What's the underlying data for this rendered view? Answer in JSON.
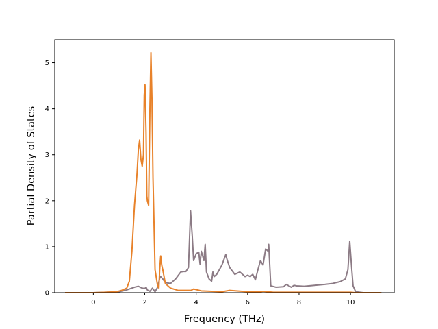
{
  "chart_data": {
    "type": "line",
    "title": "",
    "xlabel": "Frequency (THz)",
    "ylabel": "Partial Density of States",
    "xlim": [
      -1.5,
      11.7
    ],
    "ylim": [
      0,
      5.5
    ],
    "xticks": [
      0,
      2,
      4,
      6,
      8,
      10
    ],
    "yticks": [
      0,
      1,
      2,
      3,
      4,
      5
    ],
    "xtick_labels": [
      "0",
      "2",
      "4",
      "6",
      "8",
      "10"
    ],
    "ytick_labels": [
      "0",
      "1",
      "2",
      "3",
      "4",
      "5"
    ],
    "grid": false,
    "legend": false,
    "series": [
      {
        "color": "#8c7b85",
        "x": [
          -1.1,
          0.0,
          0.5,
          1.0,
          1.3,
          1.6,
          1.75,
          1.9,
          2.0,
          2.05,
          2.1,
          2.2,
          2.3,
          2.4,
          2.5,
          2.6,
          2.7,
          2.8,
          3.0,
          3.2,
          3.4,
          3.5,
          3.6,
          3.7,
          3.78,
          3.85,
          3.9,
          4.0,
          4.1,
          4.15,
          4.2,
          4.3,
          4.35,
          4.4,
          4.5,
          4.6,
          4.65,
          4.7,
          4.8,
          5.0,
          5.15,
          5.2,
          5.3,
          5.5,
          5.7,
          5.9,
          6.0,
          6.1,
          6.2,
          6.3,
          6.4,
          6.5,
          6.6,
          6.7,
          6.8,
          6.82,
          6.9,
          7.1,
          7.4,
          7.5,
          7.7,
          7.8,
          7.9,
          8.2,
          8.6,
          9.0,
          9.3,
          9.6,
          9.8,
          9.9,
          9.97,
          10.05,
          10.1,
          10.2,
          10.5,
          11.2
        ],
        "y": [
          0,
          0,
          0.01,
          0.02,
          0.06,
          0.12,
          0.14,
          0.1,
          0.09,
          0.12,
          0.06,
          0.03,
          0.1,
          0.02,
          0.12,
          0.36,
          0.3,
          0.22,
          0.2,
          0.3,
          0.45,
          0.46,
          0.46,
          0.55,
          1.78,
          1.2,
          0.7,
          0.85,
          0.88,
          0.62,
          0.9,
          0.7,
          1.05,
          0.45,
          0.3,
          0.25,
          0.45,
          0.35,
          0.4,
          0.6,
          0.83,
          0.72,
          0.55,
          0.4,
          0.45,
          0.35,
          0.38,
          0.35,
          0.4,
          0.28,
          0.5,
          0.7,
          0.6,
          0.95,
          0.9,
          1.05,
          0.15,
          0.12,
          0.13,
          0.18,
          0.12,
          0.16,
          0.15,
          0.14,
          0.16,
          0.18,
          0.2,
          0.24,
          0.3,
          0.5,
          1.12,
          0.5,
          0.15,
          0.02,
          0,
          0
        ]
      },
      {
        "color": "#e8822a",
        "x": [
          -1.1,
          0.0,
          0.5,
          0.9,
          1.1,
          1.3,
          1.4,
          1.5,
          1.6,
          1.7,
          1.75,
          1.8,
          1.85,
          1.9,
          1.95,
          1.98,
          2.01,
          2.05,
          2.08,
          2.1,
          2.15,
          2.2,
          2.24,
          2.28,
          2.32,
          2.4,
          2.5,
          2.55,
          2.58,
          2.62,
          2.66,
          2.7,
          2.8,
          3.0,
          3.3,
          3.6,
          3.8,
          3.9,
          4.2,
          5.0,
          5.3,
          6.0,
          6.5,
          6.6,
          7.0,
          8.0,
          9.0,
          10.0,
          10.2,
          11.2
        ],
        "y": [
          0,
          0,
          0.01,
          0.02,
          0.05,
          0.1,
          0.25,
          0.9,
          1.9,
          2.6,
          3.1,
          3.32,
          2.9,
          2.75,
          3.0,
          4.3,
          4.52,
          3.5,
          2.1,
          2.0,
          1.9,
          4.0,
          5.22,
          4.2,
          2.5,
          0.5,
          0.15,
          0.1,
          0.5,
          0.8,
          0.6,
          0.5,
          0.2,
          0.1,
          0.05,
          0.05,
          0.05,
          0.08,
          0.04,
          0.02,
          0.05,
          0.02,
          0.02,
          0.03,
          0.01,
          0.01,
          0.01,
          0.01,
          0.0,
          0.0
        ]
      }
    ]
  }
}
